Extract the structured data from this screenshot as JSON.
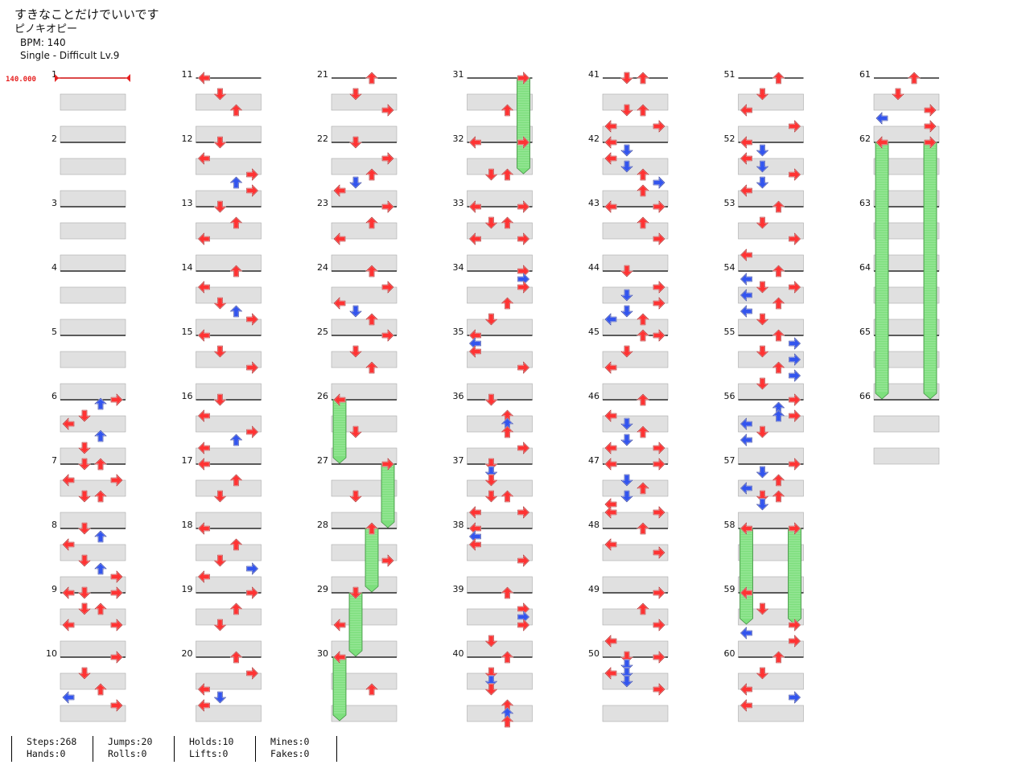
{
  "header": {
    "title": "すきなことだけでいいです",
    "artist": "ピノキオピー",
    "bpm_line": "BPM: 140",
    "difficulty_line": "Single - Difficult  Lv.9"
  },
  "chart_data": {
    "type": "table",
    "bpm_marker": "140.000",
    "columns": [
      {
        "start": 1,
        "end": 10
      },
      {
        "start": 11,
        "end": 20
      },
      {
        "start": 21,
        "end": 30
      },
      {
        "start": 31,
        "end": 40
      },
      {
        "start": 41,
        "end": 50
      },
      {
        "start": 51,
        "end": 60
      },
      {
        "start": 61,
        "end": 66
      }
    ],
    "measures_per_column": 10,
    "lanes": [
      "left",
      "down",
      "up",
      "right"
    ],
    "colors": {
      "quarter": "#ff3333",
      "eighth": "#3355ee",
      "hold": "#7ddf7d"
    },
    "notes": [
      [
        6,
        0,
        3,
        "r"
      ],
      [
        6,
        0.25,
        2,
        "b"
      ],
      [
        6,
        1,
        1,
        "r"
      ],
      [
        6,
        1.5,
        0,
        "r"
      ],
      [
        6,
        2.25,
        2,
        "b"
      ],
      [
        6,
        3,
        1,
        "r"
      ],
      [
        7,
        0,
        1,
        "r"
      ],
      [
        7,
        0,
        2,
        "r"
      ],
      [
        7,
        1,
        0,
        "r"
      ],
      [
        7,
        1,
        3,
        "r"
      ],
      [
        7,
        2,
        1,
        "r"
      ],
      [
        7,
        2,
        2,
        "r"
      ],
      [
        8,
        0,
        1,
        "r"
      ],
      [
        8,
        0.5,
        2,
        "b"
      ],
      [
        8,
        1,
        0,
        "r"
      ],
      [
        8,
        2,
        1,
        "r"
      ],
      [
        8,
        2.5,
        2,
        "b"
      ],
      [
        8,
        3,
        3,
        "r"
      ],
      [
        9,
        0,
        0,
        "r"
      ],
      [
        9,
        0,
        1,
        "r"
      ],
      [
        9,
        0,
        3,
        "r"
      ],
      [
        9,
        1,
        1,
        "r"
      ],
      [
        9,
        1,
        2,
        "r"
      ],
      [
        9,
        2,
        0,
        "r"
      ],
      [
        9,
        2,
        3,
        "r"
      ],
      [
        10,
        0,
        3,
        "r"
      ],
      [
        10,
        1,
        1,
        "r"
      ],
      [
        10,
        2,
        2,
        "r"
      ],
      [
        10,
        2.5,
        0,
        "b"
      ],
      [
        10,
        3,
        3,
        "r"
      ],
      [
        11,
        0,
        0,
        "r"
      ],
      [
        11,
        1,
        1,
        "r"
      ],
      [
        11,
        2,
        2,
        "r"
      ],
      [
        12,
        0,
        1,
        "r"
      ],
      [
        12,
        1,
        0,
        "r"
      ],
      [
        12,
        2,
        3,
        "r"
      ],
      [
        12,
        2.5,
        2,
        "b"
      ],
      [
        12,
        3,
        3,
        "r"
      ],
      [
        13,
        0,
        1,
        "r"
      ],
      [
        13,
        1,
        2,
        "r"
      ],
      [
        13,
        2,
        0,
        "r"
      ],
      [
        14,
        0,
        2,
        "r"
      ],
      [
        14,
        1,
        0,
        "r"
      ],
      [
        14,
        2,
        1,
        "r"
      ],
      [
        14,
        2.5,
        2,
        "b"
      ],
      [
        14,
        3,
        3,
        "r"
      ],
      [
        15,
        0,
        0,
        "r"
      ],
      [
        15,
        1,
        1,
        "r"
      ],
      [
        15,
        2,
        3,
        "r"
      ],
      [
        16,
        0,
        1,
        "r"
      ],
      [
        16,
        1,
        0,
        "r"
      ],
      [
        16,
        2,
        3,
        "r"
      ],
      [
        16,
        2.5,
        2,
        "b"
      ],
      [
        16,
        3,
        0,
        "r"
      ],
      [
        17,
        0,
        0,
        "r"
      ],
      [
        17,
        1,
        2,
        "r"
      ],
      [
        17,
        2,
        1,
        "r"
      ],
      [
        18,
        0,
        0,
        "r"
      ],
      [
        18,
        1,
        2,
        "r"
      ],
      [
        18,
        2,
        1,
        "r"
      ],
      [
        18,
        2.5,
        3,
        "b"
      ],
      [
        18,
        3,
        0,
        "r"
      ],
      [
        19,
        0,
        3,
        "r"
      ],
      [
        19,
        1,
        2,
        "r"
      ],
      [
        19,
        2,
        1,
        "r"
      ],
      [
        20,
        0,
        2,
        "r"
      ],
      [
        20,
        1,
        3,
        "r"
      ],
      [
        20,
        2,
        0,
        "r"
      ],
      [
        20,
        2.5,
        1,
        "b"
      ],
      [
        20,
        3,
        0,
        "r"
      ],
      [
        21,
        0,
        2,
        "r"
      ],
      [
        21,
        1,
        1,
        "r"
      ],
      [
        21,
        2,
        3,
        "r"
      ],
      [
        22,
        0,
        1,
        "r"
      ],
      [
        22,
        1,
        3,
        "r"
      ],
      [
        22,
        2,
        2,
        "r"
      ],
      [
        22,
        2.5,
        1,
        "b"
      ],
      [
        22,
        3,
        0,
        "r"
      ],
      [
        23,
        0,
        3,
        "r"
      ],
      [
        23,
        1,
        2,
        "r"
      ],
      [
        23,
        2,
        0,
        "r"
      ],
      [
        24,
        0,
        2,
        "r"
      ],
      [
        24,
        1,
        3,
        "r"
      ],
      [
        24,
        2,
        0,
        "r"
      ],
      [
        24,
        2.5,
        1,
        "b"
      ],
      [
        24,
        3,
        2,
        "r"
      ],
      [
        25,
        0,
        3,
        "r"
      ],
      [
        25,
        1,
        1,
        "r"
      ],
      [
        25,
        2,
        2,
        "r"
      ],
      [
        26,
        0,
        0,
        "r"
      ],
      [
        26,
        2,
        1,
        "r"
      ],
      [
        27,
        0,
        3,
        "r"
      ],
      [
        27,
        2,
        1,
        "r"
      ],
      [
        28,
        0,
        2,
        "r"
      ],
      [
        28,
        2,
        3,
        "r"
      ],
      [
        29,
        0,
        1,
        "r"
      ],
      [
        29,
        2,
        0,
        "r"
      ],
      [
        30,
        0,
        0,
        "r"
      ],
      [
        30,
        2,
        2,
        "r"
      ],
      [
        31,
        0,
        3,
        "r"
      ],
      [
        31,
        2,
        2,
        "r"
      ],
      [
        32,
        0,
        0,
        "r"
      ],
      [
        32,
        0,
        3,
        "r"
      ],
      [
        32,
        2,
        1,
        "r"
      ],
      [
        32,
        2,
        2,
        "r"
      ],
      [
        33,
        0,
        0,
        "r"
      ],
      [
        33,
        0,
        3,
        "r"
      ],
      [
        33,
        1,
        1,
        "r"
      ],
      [
        33,
        1,
        2,
        "r"
      ],
      [
        33,
        2,
        0,
        "r"
      ],
      [
        33,
        2,
        3,
        "r"
      ],
      [
        34,
        0,
        3,
        "r"
      ],
      [
        34,
        0.5,
        3,
        "b"
      ],
      [
        34,
        1,
        3,
        "r"
      ],
      [
        34,
        2,
        2,
        "r"
      ],
      [
        34,
        3,
        1,
        "r"
      ],
      [
        35,
        0,
        0,
        "r"
      ],
      [
        35,
        0.5,
        0,
        "b"
      ],
      [
        35,
        1,
        0,
        "r"
      ],
      [
        35,
        2,
        3,
        "r"
      ],
      [
        36,
        0,
        1,
        "r"
      ],
      [
        36,
        1,
        2,
        "r"
      ],
      [
        36,
        1.5,
        2,
        "b"
      ],
      [
        36,
        2,
        2,
        "r"
      ],
      [
        36,
        3,
        3,
        "r"
      ],
      [
        37,
        0,
        1,
        "r"
      ],
      [
        37,
        0.5,
        1,
        "b"
      ],
      [
        37,
        1,
        1,
        "r"
      ],
      [
        37,
        2,
        1,
        "r"
      ],
      [
        37,
        2,
        2,
        "r"
      ],
      [
        37,
        3,
        0,
        "r"
      ],
      [
        37,
        3,
        3,
        "r"
      ],
      [
        38,
        0,
        0,
        "r"
      ],
      [
        38,
        0.5,
        0,
        "b"
      ],
      [
        38,
        1,
        0,
        "r"
      ],
      [
        38,
        2,
        3,
        "r"
      ],
      [
        39,
        0,
        2,
        "r"
      ],
      [
        39,
        1,
        3,
        "r"
      ],
      [
        39,
        1.5,
        3,
        "b"
      ],
      [
        39,
        2,
        3,
        "r"
      ],
      [
        39,
        3,
        1,
        "r"
      ],
      [
        40,
        0,
        2,
        "r"
      ],
      [
        40,
        1,
        1,
        "r"
      ],
      [
        40,
        1.5,
        1,
        "b"
      ],
      [
        40,
        2,
        1,
        "r"
      ],
      [
        40,
        3,
        2,
        "r"
      ],
      [
        40,
        3.5,
        2,
        "b"
      ],
      [
        40,
        4,
        2,
        "r"
      ],
      [
        41,
        0,
        1,
        "r"
      ],
      [
        41,
        0,
        2,
        "r"
      ],
      [
        41,
        2,
        1,
        "r"
      ],
      [
        41,
        2,
        2,
        "r"
      ],
      [
        41,
        3,
        0,
        "r"
      ],
      [
        41,
        3,
        3,
        "r"
      ],
      [
        42,
        0,
        0,
        "r"
      ],
      [
        42,
        0.5,
        1,
        "b"
      ],
      [
        42,
        1,
        0,
        "r"
      ],
      [
        42,
        1.5,
        1,
        "b"
      ],
      [
        42,
        2,
        2,
        "r"
      ],
      [
        42,
        2.5,
        3,
        "b"
      ],
      [
        42,
        3,
        2,
        "r"
      ],
      [
        43,
        0,
        0,
        "r"
      ],
      [
        43,
        0,
        3,
        "r"
      ],
      [
        43,
        1,
        2,
        "r"
      ],
      [
        43,
        2,
        3,
        "r"
      ],
      [
        44,
        0,
        1,
        "r"
      ],
      [
        44,
        1,
        3,
        "r"
      ],
      [
        44,
        1.5,
        1,
        "b"
      ],
      [
        44,
        2,
        3,
        "r"
      ],
      [
        44,
        2.5,
        1,
        "b"
      ],
      [
        44,
        3,
        0,
        "b"
      ],
      [
        44,
        3,
        2,
        "r"
      ],
      [
        45,
        0,
        2,
        "r"
      ],
      [
        45,
        0,
        3,
        "r"
      ],
      [
        45,
        1,
        1,
        "r"
      ],
      [
        45,
        2,
        0,
        "r"
      ],
      [
        46,
        0,
        2,
        "r"
      ],
      [
        46,
        1,
        0,
        "r"
      ],
      [
        46,
        1.5,
        1,
        "b"
      ],
      [
        46,
        2,
        2,
        "r"
      ],
      [
        46,
        2.5,
        1,
        "b"
      ],
      [
        46,
        3,
        0,
        "r"
      ],
      [
        46,
        3,
        3,
        "r"
      ],
      [
        47,
        0,
        0,
        "r"
      ],
      [
        47,
        0,
        3,
        "r"
      ],
      [
        47,
        1,
        1,
        "b"
      ],
      [
        47,
        1.5,
        2,
        "r"
      ],
      [
        47,
        2,
        1,
        "b"
      ],
      [
        47,
        2.5,
        0,
        "r"
      ],
      [
        47,
        3,
        0,
        "r"
      ],
      [
        47,
        3,
        3,
        "r"
      ],
      [
        48,
        0,
        2,
        "r"
      ],
      [
        48,
        1,
        0,
        "r"
      ],
      [
        48,
        1.5,
        3,
        "r"
      ],
      [
        49,
        0,
        3,
        "r"
      ],
      [
        49,
        1,
        2,
        "r"
      ],
      [
        49,
        2,
        3,
        "r"
      ],
      [
        49,
        3,
        0,
        "r"
      ],
      [
        50,
        0,
        1,
        "r"
      ],
      [
        50,
        0,
        3,
        "r"
      ],
      [
        50,
        0.5,
        1,
        "b"
      ],
      [
        50,
        1,
        0,
        "r"
      ],
      [
        50,
        1,
        1,
        "b"
      ],
      [
        50,
        1.5,
        1,
        "b"
      ],
      [
        50,
        2,
        3,
        "r"
      ],
      [
        51,
        0,
        2,
        "r"
      ],
      [
        51,
        1,
        1,
        "r"
      ],
      [
        51,
        2,
        0,
        "r"
      ],
      [
        51,
        3,
        3,
        "r"
      ],
      [
        52,
        0,
        0,
        "r"
      ],
      [
        52,
        0.5,
        1,
        "b"
      ],
      [
        52,
        1,
        0,
        "r"
      ],
      [
        52,
        1.5,
        1,
        "b"
      ],
      [
        52,
        2,
        3,
        "r"
      ],
      [
        52,
        2.5,
        1,
        "b"
      ],
      [
        52,
        3,
        0,
        "r"
      ],
      [
        53,
        0,
        2,
        "r"
      ],
      [
        53,
        1,
        1,
        "r"
      ],
      [
        53,
        2,
        3,
        "r"
      ],
      [
        53,
        3,
        0,
        "r"
      ],
      [
        54,
        0,
        2,
        "r"
      ],
      [
        54,
        0.5,
        0,
        "b"
      ],
      [
        54,
        1,
        1,
        "r"
      ],
      [
        54,
        1,
        3,
        "r"
      ],
      [
        54,
        1.5,
        0,
        "b"
      ],
      [
        54,
        2,
        2,
        "r"
      ],
      [
        54,
        2.5,
        0,
        "b"
      ],
      [
        54,
        3,
        1,
        "r"
      ],
      [
        55,
        0,
        2,
        "r"
      ],
      [
        55,
        0.5,
        3,
        "b"
      ],
      [
        55,
        1,
        1,
        "r"
      ],
      [
        55,
        1.5,
        3,
        "b"
      ],
      [
        55,
        2,
        2,
        "r"
      ],
      [
        55,
        2.5,
        3,
        "b"
      ],
      [
        55,
        3,
        1,
        "r"
      ],
      [
        56,
        0,
        3,
        "r"
      ],
      [
        56,
        0.5,
        2,
        "b"
      ],
      [
        56,
        1,
        2,
        "b"
      ],
      [
        56,
        1,
        3,
        "r"
      ],
      [
        56,
        1.5,
        0,
        "b"
      ],
      [
        56,
        2,
        1,
        "r"
      ],
      [
        56,
        2.5,
        0,
        "b"
      ],
      [
        57,
        0,
        3,
        "r"
      ],
      [
        57,
        0.5,
        1,
        "b"
      ],
      [
        57,
        1,
        2,
        "r"
      ],
      [
        57,
        1.5,
        0,
        "b"
      ],
      [
        57,
        2,
        1,
        "r"
      ],
      [
        57,
        2,
        2,
        "r"
      ],
      [
        57,
        2.5,
        1,
        "b"
      ],
      [
        58,
        0,
        0,
        "r"
      ],
      [
        58,
        0,
        3,
        "r"
      ],
      [
        59,
        0,
        0,
        "r"
      ],
      [
        59,
        1,
        1,
        "r"
      ],
      [
        59,
        2,
        3,
        "r"
      ],
      [
        59,
        2.5,
        0,
        "b"
      ],
      [
        59,
        3,
        3,
        "r"
      ],
      [
        60,
        0,
        2,
        "r"
      ],
      [
        60,
        1,
        1,
        "r"
      ],
      [
        60,
        2,
        0,
        "r"
      ],
      [
        60,
        2.5,
        3,
        "b"
      ],
      [
        60,
        3,
        0,
        "r"
      ],
      [
        61,
        0,
        2,
        "r"
      ],
      [
        61,
        1,
        1,
        "r"
      ],
      [
        61,
        2,
        3,
        "r"
      ],
      [
        61,
        2.5,
        0,
        "b"
      ],
      [
        61,
        3,
        3,
        "r"
      ],
      [
        62,
        0,
        0,
        "r"
      ],
      [
        62,
        0,
        3,
        "r"
      ]
    ],
    "holds": [
      [
        26,
        0,
        0,
        1
      ],
      [
        27,
        0,
        3,
        1
      ],
      [
        28,
        0,
        2,
        1
      ],
      [
        29,
        0,
        1,
        1
      ],
      [
        30,
        0,
        0,
        1
      ],
      [
        31,
        0,
        3,
        1.5
      ],
      [
        58,
        0,
        0,
        1.5
      ],
      [
        58,
        0,
        3,
        1.5
      ],
      [
        62,
        0,
        0,
        4
      ],
      [
        62,
        0,
        3,
        4
      ]
    ]
  },
  "stats": [
    [
      "Steps:268",
      "Hands:0"
    ],
    [
      "Jumps:20",
      "Rolls:0"
    ],
    [
      "Holds:10",
      "Lifts:0"
    ],
    [
      "Mines:0",
      "Fakes:0"
    ]
  ]
}
